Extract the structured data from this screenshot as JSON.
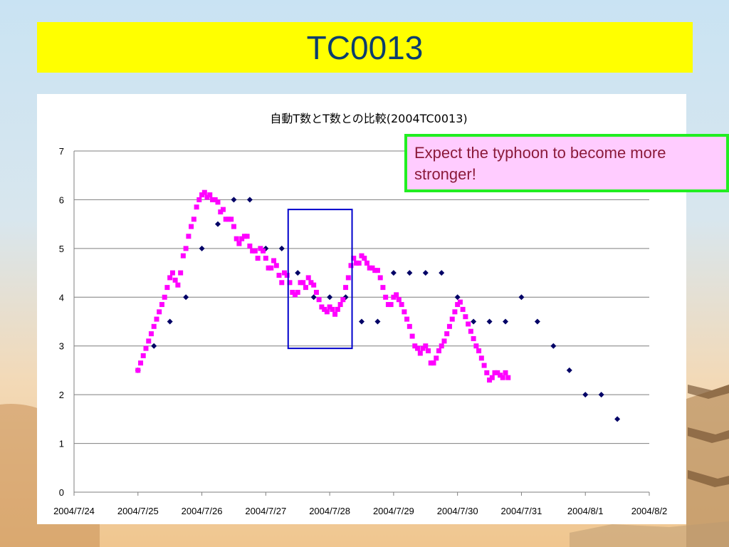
{
  "slide": {
    "title": "TC0013"
  },
  "callout": {
    "text": "Expect the typhoon to become more stronger!"
  },
  "colors": {
    "title_bg": "#ffff00",
    "title_text": "#0b3d6e",
    "series_auto": "#ff00ff",
    "series_manual": "#000066",
    "highlight_box": "#0000cc",
    "callout_bg": "#ffccff",
    "callout_border": "#22ee22"
  },
  "chart_data": {
    "type": "scatter",
    "title": "自動T数とT数との比較(2004TC0013)",
    "xlabel": "",
    "ylabel": "",
    "ylim": [
      0,
      7
    ],
    "yticks": [
      "0",
      "1",
      "2",
      "3",
      "4",
      "5",
      "6",
      "7"
    ],
    "xticks": [
      "2004/7/24",
      "2004/7/25",
      "2004/7/26",
      "2004/7/27",
      "2004/7/28",
      "2004/7/29",
      "2004/7/30",
      "2004/7/31",
      "2004/8/1",
      "2004/8/2"
    ],
    "xlim_days": [
      0,
      9
    ],
    "grid": "horizontal",
    "highlight_region": {
      "x": [
        3.35,
        4.35
      ],
      "y": [
        2.95,
        5.8
      ]
    },
    "series": [
      {
        "marker": "diamond",
        "color": "#000066",
        "points": [
          [
            1.0,
            2.5
          ],
          [
            1.25,
            3.0
          ],
          [
            1.5,
            3.5
          ],
          [
            1.75,
            4.0
          ],
          [
            2.0,
            5.0
          ],
          [
            2.25,
            5.5
          ],
          [
            2.5,
            6.0
          ],
          [
            2.75,
            6.0
          ],
          [
            3.0,
            5.0
          ],
          [
            3.25,
            5.0
          ],
          [
            3.5,
            4.5
          ],
          [
            3.75,
            4.0
          ],
          [
            4.0,
            4.0
          ],
          [
            4.25,
            4.0
          ],
          [
            4.5,
            3.5
          ],
          [
            4.75,
            3.5
          ],
          [
            5.0,
            4.5
          ],
          [
            5.25,
            4.5
          ],
          [
            5.5,
            4.5
          ],
          [
            5.75,
            4.5
          ],
          [
            6.0,
            4.0
          ],
          [
            6.25,
            3.5
          ],
          [
            6.5,
            3.5
          ],
          [
            6.75,
            3.5
          ],
          [
            7.0,
            4.0
          ],
          [
            7.25,
            3.5
          ],
          [
            7.5,
            3.0
          ],
          [
            7.75,
            2.5
          ],
          [
            8.0,
            2.0
          ],
          [
            8.25,
            2.0
          ],
          [
            8.5,
            1.5
          ]
        ]
      },
      {
        "marker": "square",
        "color": "#ff00ff",
        "points": [
          [
            1.0,
            2.5
          ],
          [
            1.042,
            2.65
          ],
          [
            1.083,
            2.8
          ],
          [
            1.125,
            2.95
          ],
          [
            1.167,
            3.1
          ],
          [
            1.208,
            3.25
          ],
          [
            1.25,
            3.4
          ],
          [
            1.292,
            3.55
          ],
          [
            1.333,
            3.7
          ],
          [
            1.375,
            3.85
          ],
          [
            1.417,
            4.0
          ],
          [
            1.458,
            4.2
          ],
          [
            1.5,
            4.4
          ],
          [
            1.542,
            4.5
          ],
          [
            1.583,
            4.35
          ],
          [
            1.625,
            4.25
          ],
          [
            1.667,
            4.5
          ],
          [
            1.708,
            4.85
          ],
          [
            1.75,
            5.0
          ],
          [
            1.792,
            5.25
          ],
          [
            1.833,
            5.45
          ],
          [
            1.875,
            5.6
          ],
          [
            1.917,
            5.85
          ],
          [
            1.958,
            6.0
          ],
          [
            2.0,
            6.1
          ],
          [
            2.042,
            6.15
          ],
          [
            2.083,
            6.05
          ],
          [
            2.125,
            6.1
          ],
          [
            2.167,
            6.0
          ],
          [
            2.208,
            6.0
          ],
          [
            2.25,
            5.95
          ],
          [
            2.292,
            5.75
          ],
          [
            2.333,
            5.8
          ],
          [
            2.375,
            5.6
          ],
          [
            2.417,
            5.6
          ],
          [
            2.458,
            5.6
          ],
          [
            2.5,
            5.45
          ],
          [
            2.542,
            5.2
          ],
          [
            2.583,
            5.1
          ],
          [
            2.625,
            5.2
          ],
          [
            2.667,
            5.25
          ],
          [
            2.708,
            5.25
          ],
          [
            2.75,
            5.05
          ],
          [
            2.792,
            4.95
          ],
          [
            2.833,
            4.95
          ],
          [
            2.875,
            4.8
          ],
          [
            2.917,
            5.0
          ],
          [
            2.958,
            4.95
          ],
          [
            3.0,
            4.8
          ],
          [
            3.042,
            4.6
          ],
          [
            3.083,
            4.6
          ],
          [
            3.125,
            4.75
          ],
          [
            3.167,
            4.65
          ],
          [
            3.208,
            4.45
          ],
          [
            3.25,
            4.3
          ],
          [
            3.292,
            4.5
          ],
          [
            3.333,
            4.45
          ],
          [
            3.375,
            4.3
          ],
          [
            3.417,
            4.1
          ],
          [
            3.458,
            4.05
          ],
          [
            3.5,
            4.1
          ],
          [
            3.542,
            4.3
          ],
          [
            3.583,
            4.3
          ],
          [
            3.625,
            4.2
          ],
          [
            3.667,
            4.4
          ],
          [
            3.708,
            4.3
          ],
          [
            3.75,
            4.25
          ],
          [
            3.792,
            4.1
          ],
          [
            3.833,
            3.95
          ],
          [
            3.875,
            3.8
          ],
          [
            3.917,
            3.75
          ],
          [
            3.958,
            3.7
          ],
          [
            4.0,
            3.8
          ],
          [
            4.042,
            3.75
          ],
          [
            4.083,
            3.65
          ],
          [
            4.125,
            3.75
          ],
          [
            4.167,
            3.85
          ],
          [
            4.208,
            3.95
          ],
          [
            4.25,
            4.2
          ],
          [
            4.292,
            4.4
          ],
          [
            4.333,
            4.65
          ],
          [
            4.375,
            4.8
          ],
          [
            4.417,
            4.7
          ],
          [
            4.458,
            4.7
          ],
          [
            4.5,
            4.85
          ],
          [
            4.542,
            4.8
          ],
          [
            4.583,
            4.7
          ],
          [
            4.625,
            4.6
          ],
          [
            4.667,
            4.6
          ],
          [
            4.708,
            4.55
          ],
          [
            4.75,
            4.55
          ],
          [
            4.792,
            4.4
          ],
          [
            4.833,
            4.2
          ],
          [
            4.875,
            4.0
          ],
          [
            4.917,
            3.85
          ],
          [
            4.958,
            3.85
          ],
          [
            5.0,
            4.0
          ],
          [
            5.042,
            4.05
          ],
          [
            5.083,
            3.95
          ],
          [
            5.125,
            3.85
          ],
          [
            5.167,
            3.7
          ],
          [
            5.208,
            3.55
          ],
          [
            5.25,
            3.4
          ],
          [
            5.292,
            3.2
          ],
          [
            5.333,
            3.0
          ],
          [
            5.375,
            2.95
          ],
          [
            5.417,
            2.85
          ],
          [
            5.458,
            2.95
          ],
          [
            5.5,
            3.0
          ],
          [
            5.542,
            2.9
          ],
          [
            5.583,
            2.65
          ],
          [
            5.625,
            2.65
          ],
          [
            5.667,
            2.75
          ],
          [
            5.708,
            2.9
          ],
          [
            5.75,
            3.0
          ],
          [
            5.792,
            3.1
          ],
          [
            5.833,
            3.25
          ],
          [
            5.875,
            3.4
          ],
          [
            5.917,
            3.55
          ],
          [
            5.958,
            3.7
          ],
          [
            6.0,
            3.85
          ],
          [
            6.042,
            3.9
          ],
          [
            6.083,
            3.75
          ],
          [
            6.125,
            3.6
          ],
          [
            6.167,
            3.45
          ],
          [
            6.208,
            3.3
          ],
          [
            6.25,
            3.15
          ],
          [
            6.292,
            3.0
          ],
          [
            6.333,
            2.9
          ],
          [
            6.375,
            2.75
          ],
          [
            6.417,
            2.6
          ],
          [
            6.458,
            2.45
          ],
          [
            6.5,
            2.3
          ],
          [
            6.542,
            2.35
          ],
          [
            6.583,
            2.45
          ],
          [
            6.625,
            2.45
          ],
          [
            6.667,
            2.4
          ],
          [
            6.708,
            2.35
          ],
          [
            6.75,
            2.45
          ],
          [
            6.792,
            2.35
          ]
        ]
      }
    ]
  }
}
